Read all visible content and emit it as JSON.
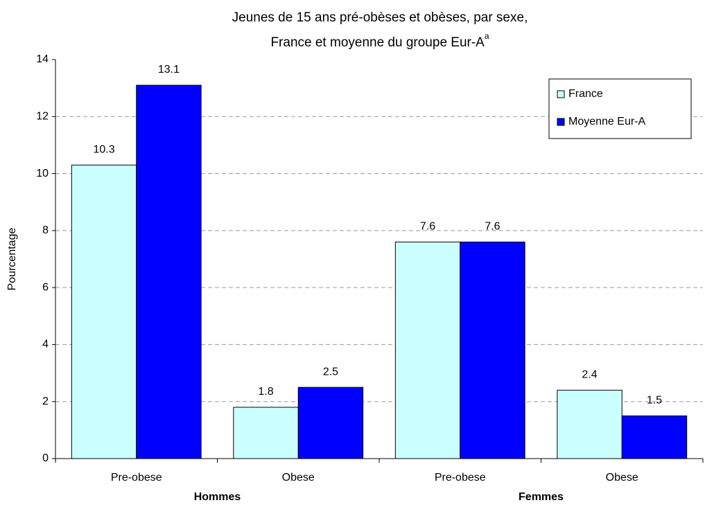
{
  "chart_data": {
    "type": "bar",
    "title": [
      "Jeunes de 15 ans pré-obèses et obèses, par sexe,",
      "France et moyenne du groupe Eur-A"
    ],
    "title_superscript": "a",
    "y_label": "Pourcentage",
    "categories": [
      "Pre-obese",
      "Obese",
      "Pre-obese",
      "Obese"
    ],
    "groups": [
      "Hommes",
      "Femmes"
    ],
    "series": [
      {
        "name": "France",
        "color": "#ccffff",
        "values": [
          10.3,
          1.8,
          7.6,
          2.4
        ]
      },
      {
        "name": "Moyenne Eur-A",
        "color": "#0000ff",
        "values": [
          13.1,
          2.5,
          7.6,
          1.5
        ]
      }
    ],
    "ylim": [
      0,
      14
    ],
    "yticks": [
      0,
      2,
      4,
      6,
      8,
      10,
      12,
      14
    ],
    "grid": true,
    "legend": "top-right"
  }
}
